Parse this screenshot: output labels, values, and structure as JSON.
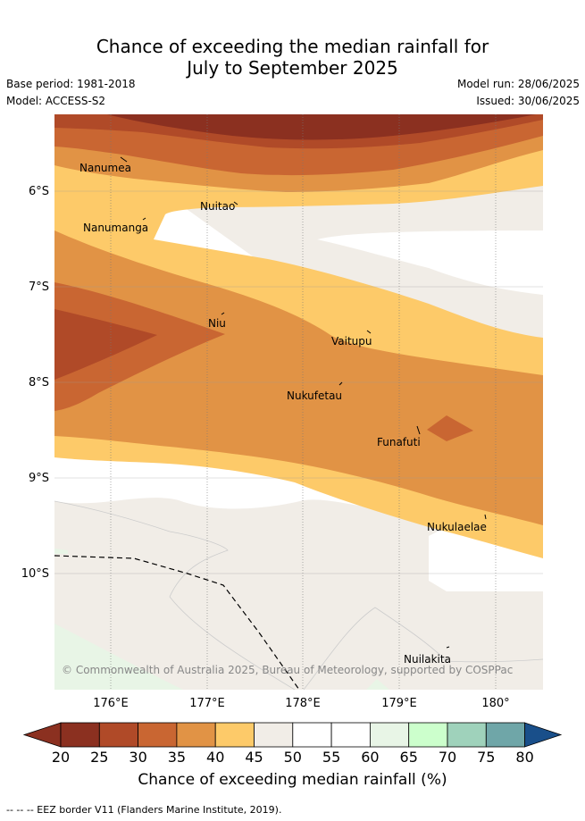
{
  "title_line1": "Chance of exceeding the median rainfall for",
  "title_line2": "July to September 2025",
  "meta": {
    "base_period": "Base period: 1981-2018",
    "model": "Model: ACCESS-S2",
    "model_run": "Model run: 28/06/2025",
    "issued": "Issued: 30/06/2025"
  },
  "lat_labels": [
    "6°S",
    "7°S",
    "8°S",
    "9°S",
    "10°S"
  ],
  "lon_labels": [
    "176°E",
    "177°E",
    "178°E",
    "179°E",
    "180°"
  ],
  "places": [
    "Nanumea",
    "Nuitao",
    "Nanumanga",
    "Niu",
    "Vaitupu",
    "Nukufetau",
    "Funafuti",
    "Nukulaelae",
    "Nuilakita"
  ],
  "copyright": "© Commonwealth of Australia 2025, Bureau of Meteorology, supported by COSPPac",
  "colorbar": {
    "ticks": [
      "20",
      "25",
      "30",
      "35",
      "40",
      "45",
      "50",
      "55",
      "60",
      "65",
      "70",
      "75",
      "80"
    ],
    "colors": [
      "#8b3020",
      "#b04a28",
      "#c96632",
      "#e19345",
      "#fdca69",
      "#f1ede7",
      "#ffffff",
      "#ffffff",
      "#e8f5e6",
      "#ccffcc",
      "#9fd2bb",
      "#6fa6a8",
      "#457b9d"
    ],
    "under_color": "#8b3020",
    "over_color": "#194f8a",
    "label": "Chance of exceeding median rainfall (%)"
  },
  "footer": "-- -- -- EEZ border V11 (Flanders Marine Institute, 2019)."
}
